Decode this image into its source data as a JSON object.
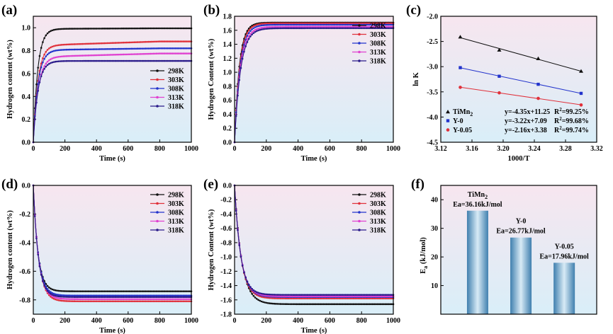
{
  "panel_labels": [
    "(a)",
    "(b)",
    "(c)",
    "(d)",
    "(e)",
    "(f)"
  ],
  "colors": {
    "298K": "#111111",
    "303K": "#e0303a",
    "308K": "#2233cc",
    "313K": "#e040d0",
    "318K": "#2a1a8a",
    "bg_top": "#f7e6ef",
    "bg_bottom": "#d9eef8",
    "bar": "#6fa3c8"
  },
  "chart_data": [
    {
      "id": "a",
      "type": "line",
      "xlabel": "Time (s)",
      "ylabel": "Hydrogen content (wt%)",
      "xlim": [
        0,
        1000
      ],
      "ylim": [
        0,
        1.1
      ],
      "xticks": [
        0,
        200,
        400,
        600,
        800,
        1000
      ],
      "yticks": [
        0.0,
        0.2,
        0.4,
        0.6,
        0.8,
        1.0
      ],
      "ytick_labels": [
        "0.0",
        "0.2",
        "0.4",
        "0.6",
        "0.8",
        "1.0"
      ],
      "legend": "right-middle",
      "series": [
        {
          "name": "298K",
          "plateau": 0.99,
          "tau": 28,
          "drift": 0.005
        },
        {
          "name": "303K",
          "plateau": 0.845,
          "tau": 30,
          "drift": 0.035
        },
        {
          "name": "308K",
          "plateau": 0.805,
          "tau": 30,
          "drift": 0.015
        },
        {
          "name": "313K",
          "plateau": 0.745,
          "tau": 32,
          "drift": 0.03
        },
        {
          "name": "318K",
          "plateau": 0.71,
          "tau": 30,
          "drift": 0.0
        }
      ]
    },
    {
      "id": "b",
      "type": "line",
      "xlabel": "Time (s)",
      "ylabel": "Hydrogen Content (wt%)",
      "xlim": [
        0,
        1000
      ],
      "ylim": [
        0,
        1.8
      ],
      "xticks": [
        0,
        200,
        400,
        600,
        800,
        1000
      ],
      "yticks": [
        0.0,
        0.2,
        0.4,
        0.6,
        0.8,
        1.0,
        1.2,
        1.4,
        1.6,
        1.8
      ],
      "ytick_labels": [
        "0.0",
        "0.2",
        "0.4",
        "0.6",
        "0.8",
        "1.0",
        "1.2",
        "1.4",
        "1.6",
        "1.8"
      ],
      "legend": "right-top",
      "series": [
        {
          "name": "298K",
          "plateau": 1.71,
          "tau": 30,
          "drift": 0.0
        },
        {
          "name": "303K",
          "plateau": 1.7,
          "tau": 32,
          "drift": 0.0
        },
        {
          "name": "308K",
          "plateau": 1.68,
          "tau": 34,
          "drift": 0.0
        },
        {
          "name": "313K",
          "plateau": 1.65,
          "tau": 36,
          "drift": 0.0
        },
        {
          "name": "318K",
          "plateau": 1.63,
          "tau": 38,
          "drift": 0.0
        }
      ]
    },
    {
      "id": "c",
      "type": "scatter",
      "xlabel": "1000/T",
      "ylabel": "ln K",
      "xlim": [
        3.12,
        3.32
      ],
      "ylim": [
        -4.5,
        -2.0
      ],
      "xticks": [
        3.12,
        3.16,
        3.2,
        3.24,
        3.28,
        3.32
      ],
      "xtick_labels": [
        "3.12",
        "3.16",
        "3.20",
        "3.24",
        "3.28",
        "3.32"
      ],
      "yticks": [
        -4.5,
        -4.0,
        -3.5,
        -3.0,
        -2.5,
        -2.0
      ],
      "ytick_labels": [
        "-4.5",
        "-4.0",
        "-3.5",
        "-3.0",
        "-2.5",
        "-2.0"
      ],
      "series": [
        {
          "name": "TiMn",
          "sub": "2",
          "color": "#111111",
          "marker": "triangle",
          "x": [
            3.145,
            3.195,
            3.245,
            3.3
          ],
          "y": [
            -2.41,
            -2.67,
            -2.84,
            -3.09
          ],
          "fit": "y=-4.35x+11.25",
          "r2": "=99.25%"
        },
        {
          "name": "Y-0",
          "sub": "",
          "color": "#2233cc",
          "marker": "square",
          "x": [
            3.145,
            3.195,
            3.245,
            3.3
          ],
          "y": [
            -3.02,
            -3.19,
            -3.35,
            -3.53
          ],
          "fit": "y=-3.22x+7.09",
          "r2": "=99.68%"
        },
        {
          "name": "Y-0.05",
          "sub": "",
          "color": "#e0303a",
          "marker": "circle",
          "x": [
            3.145,
            3.195,
            3.245,
            3.3
          ],
          "y": [
            -3.41,
            -3.52,
            -3.63,
            -3.76
          ],
          "fit": "y=-2.16x+3.38",
          "r2": "=99.74%"
        }
      ]
    },
    {
      "id": "d",
      "type": "line",
      "xlabel": "Time (s)",
      "ylabel": "Hydrogen content (wt%)",
      "xlim": [
        0,
        1000
      ],
      "ylim": [
        -0.9,
        0.0
      ],
      "xticks": [
        0,
        200,
        400,
        600,
        800,
        1000
      ],
      "yticks": [
        0.0,
        -0.2,
        -0.4,
        -0.6,
        -0.8
      ],
      "ytick_labels": [
        "0.0",
        "-0.2",
        "-0.4",
        "-0.6",
        "-0.8"
      ],
      "legend": "right-top",
      "series": [
        {
          "name": "298K",
          "plateau": -0.74,
          "tau": 30,
          "drift": 0.0
        },
        {
          "name": "303K",
          "plateau": -0.81,
          "tau": 34,
          "drift": 0.0
        },
        {
          "name": "308K",
          "plateau": -0.77,
          "tau": 32,
          "drift": 0.0
        },
        {
          "name": "313K",
          "plateau": -0.795,
          "tau": 33,
          "drift": 0.0
        },
        {
          "name": "318K",
          "plateau": -0.78,
          "tau": 31,
          "drift": 0.0
        }
      ]
    },
    {
      "id": "e",
      "type": "line",
      "xlabel": "Time (s)",
      "ylabel": "Hydrogen Content (wt%)",
      "xlim": [
        0,
        1000
      ],
      "ylim": [
        -1.8,
        0.0
      ],
      "xticks": [
        0,
        200,
        400,
        600,
        800,
        1000
      ],
      "yticks": [
        0.0,
        -0.2,
        -0.4,
        -0.6,
        -0.8,
        -1.0,
        -1.2,
        -1.4,
        -1.6,
        -1.8
      ],
      "ytick_labels": [
        "0.0",
        "-0.2",
        "-0.4",
        "-0.6",
        "-0.8",
        "-1.0",
        "-1.2",
        "-1.4",
        "-1.6",
        "-1.8"
      ],
      "legend": "right-top",
      "series": [
        {
          "name": "298K",
          "plateau": -1.66,
          "tau": 45,
          "drift": 0.0
        },
        {
          "name": "303K",
          "plateau": -1.58,
          "tau": 40,
          "drift": 0.0
        },
        {
          "name": "308K",
          "plateau": -1.56,
          "tau": 40,
          "drift": 0.0
        },
        {
          "name": "313K",
          "plateau": -1.55,
          "tau": 40,
          "drift": 0.0
        },
        {
          "name": "318K",
          "plateau": -1.53,
          "tau": 38,
          "drift": 0.0
        }
      ]
    },
    {
      "id": "f",
      "type": "bar",
      "ylabel": "E",
      "ylabel_sub": "a",
      "ylabel_unit": " (kJ/mol)",
      "ylim": [
        0,
        45
      ],
      "yticks": [
        10,
        20,
        30,
        40
      ],
      "categories": [
        "TiMn2",
        "Y-0",
        "Y-0.05"
      ],
      "values": [
        36.16,
        26.77,
        17.96
      ],
      "bar_labels": [
        {
          "line1": "TiMn",
          "sub": "2",
          "line2": "Ea=36.16kJ/mol"
        },
        {
          "line1": "Y-0",
          "sub": "",
          "line2": "Ea=26.77kJ/mol"
        },
        {
          "line1": "Y-0.05",
          "sub": "",
          "line2": "Ea=17.96kJ/mol"
        }
      ]
    }
  ]
}
